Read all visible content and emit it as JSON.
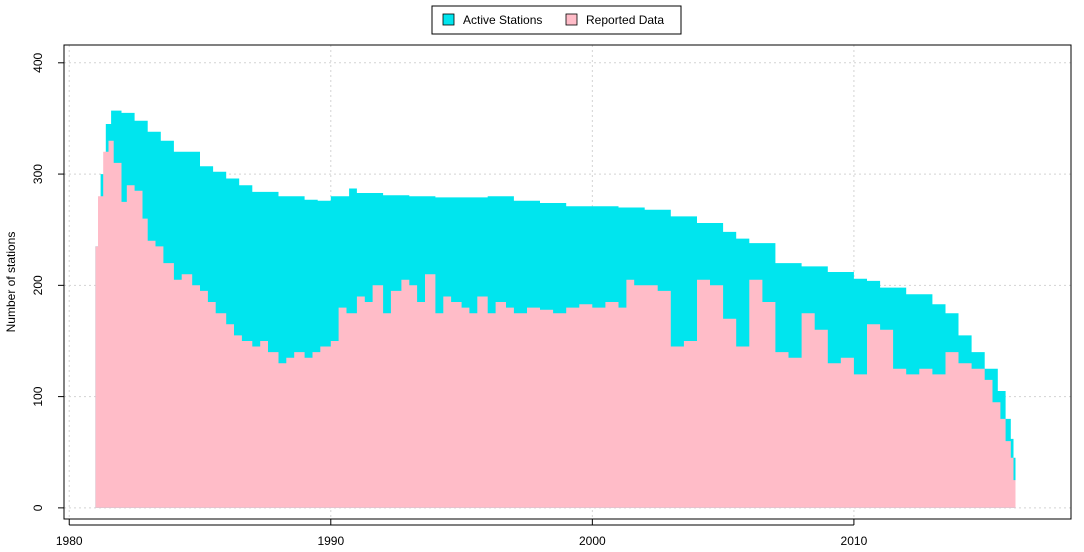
{
  "chart_data": {
    "type": "area",
    "title": "",
    "xlabel": "",
    "ylabel": "Number of stations",
    "xlim": [
      1979.8,
      2018.3
    ],
    "ylim": [
      -10,
      416
    ],
    "x_ticks": [
      1980,
      1990,
      2000,
      2010
    ],
    "y_ticks": [
      0,
      100,
      200,
      300,
      400
    ],
    "grid": true,
    "legend": {
      "position": "top-center",
      "entries": [
        "Active Stations",
        "Reported Data"
      ]
    },
    "series": [
      {
        "name": "Active Stations",
        "color": "#00e5ee",
        "x": [
          1981.0,
          1981.1,
          1981.2,
          1981.4,
          1981.6,
          1982.0,
          1982.5,
          1983.0,
          1983.5,
          1984.0,
          1985.0,
          1985.5,
          1986.0,
          1986.5,
          1987.0,
          1988.0,
          1989.0,
          1989.5,
          1990.0,
          1990.7,
          1991.0,
          1992.0,
          1993.0,
          1994.0,
          1995.0,
          1996.0,
          1997.0,
          1998.0,
          1999.0,
          2000.0,
          2001.0,
          2002.0,
          2003.0,
          2004.0,
          2005.0,
          2005.5,
          2006.0,
          2007.0,
          2008.0,
          2009.0,
          2010.0,
          2010.5,
          2011.0,
          2012.0,
          2013.0,
          2013.5,
          2014.0,
          2014.5,
          2015.0,
          2015.5,
          2015.8,
          2016.0,
          2016.1
        ],
        "values": [
          235,
          260,
          300,
          345,
          357,
          355,
          348,
          338,
          330,
          320,
          307,
          302,
          296,
          290,
          284,
          280,
          277,
          276,
          280,
          287,
          283,
          281,
          280,
          279,
          279,
          280,
          276,
          274,
          271,
          271,
          270,
          268,
          262,
          256,
          248,
          242,
          238,
          220,
          217,
          212,
          206,
          204,
          198,
          192,
          183,
          175,
          155,
          140,
          125,
          105,
          80,
          62,
          45
        ]
      },
      {
        "name": "Reported Data",
        "color": "#ffbcc8",
        "x": [
          1981.0,
          1981.1,
          1981.3,
          1981.5,
          1981.7,
          1982.0,
          1982.2,
          1982.5,
          1982.8,
          1983.0,
          1983.3,
          1983.6,
          1984.0,
          1984.3,
          1984.7,
          1985.0,
          1985.3,
          1985.6,
          1986.0,
          1986.3,
          1986.6,
          1987.0,
          1987.3,
          1987.6,
          1988.0,
          1988.3,
          1988.6,
          1989.0,
          1989.3,
          1989.6,
          1990.0,
          1990.3,
          1990.6,
          1991.0,
          1991.3,
          1991.6,
          1992.0,
          1992.3,
          1992.7,
          1993.0,
          1993.3,
          1993.6,
          1994.0,
          1994.3,
          1994.6,
          1995.0,
          1995.3,
          1995.6,
          1996.0,
          1996.3,
          1996.7,
          1997.0,
          1997.5,
          1998.0,
          1998.5,
          1999.0,
          1999.5,
          2000.0,
          2000.5,
          2001.0,
          2001.3,
          2001.6,
          2002.0,
          2002.5,
          2003.0,
          2003.5,
          2004.0,
          2004.5,
          2005.0,
          2005.5,
          2006.0,
          2006.5,
          2007.0,
          2007.5,
          2008.0,
          2008.5,
          2009.0,
          2009.5,
          2010.0,
          2010.5,
          2011.0,
          2011.5,
          2012.0,
          2012.5,
          2013.0,
          2013.5,
          2014.0,
          2014.5,
          2015.0,
          2015.3,
          2015.6,
          2015.8,
          2016.0,
          2016.1
        ],
        "values": [
          235,
          280,
          320,
          330,
          310,
          275,
          290,
          285,
          260,
          240,
          235,
          220,
          205,
          210,
          200,
          195,
          185,
          175,
          165,
          155,
          150,
          145,
          150,
          140,
          130,
          135,
          140,
          135,
          140,
          145,
          150,
          180,
          175,
          190,
          185,
          200,
          175,
          195,
          205,
          200,
          185,
          210,
          175,
          190,
          185,
          180,
          175,
          190,
          175,
          185,
          180,
          175,
          180,
          178,
          175,
          180,
          183,
          180,
          185,
          180,
          205,
          200,
          200,
          195,
          145,
          150,
          205,
          200,
          170,
          145,
          205,
          185,
          140,
          135,
          175,
          160,
          130,
          135,
          120,
          165,
          160,
          125,
          120,
          125,
          120,
          140,
          130,
          125,
          115,
          95,
          80,
          60,
          45,
          25
        ]
      }
    ]
  }
}
